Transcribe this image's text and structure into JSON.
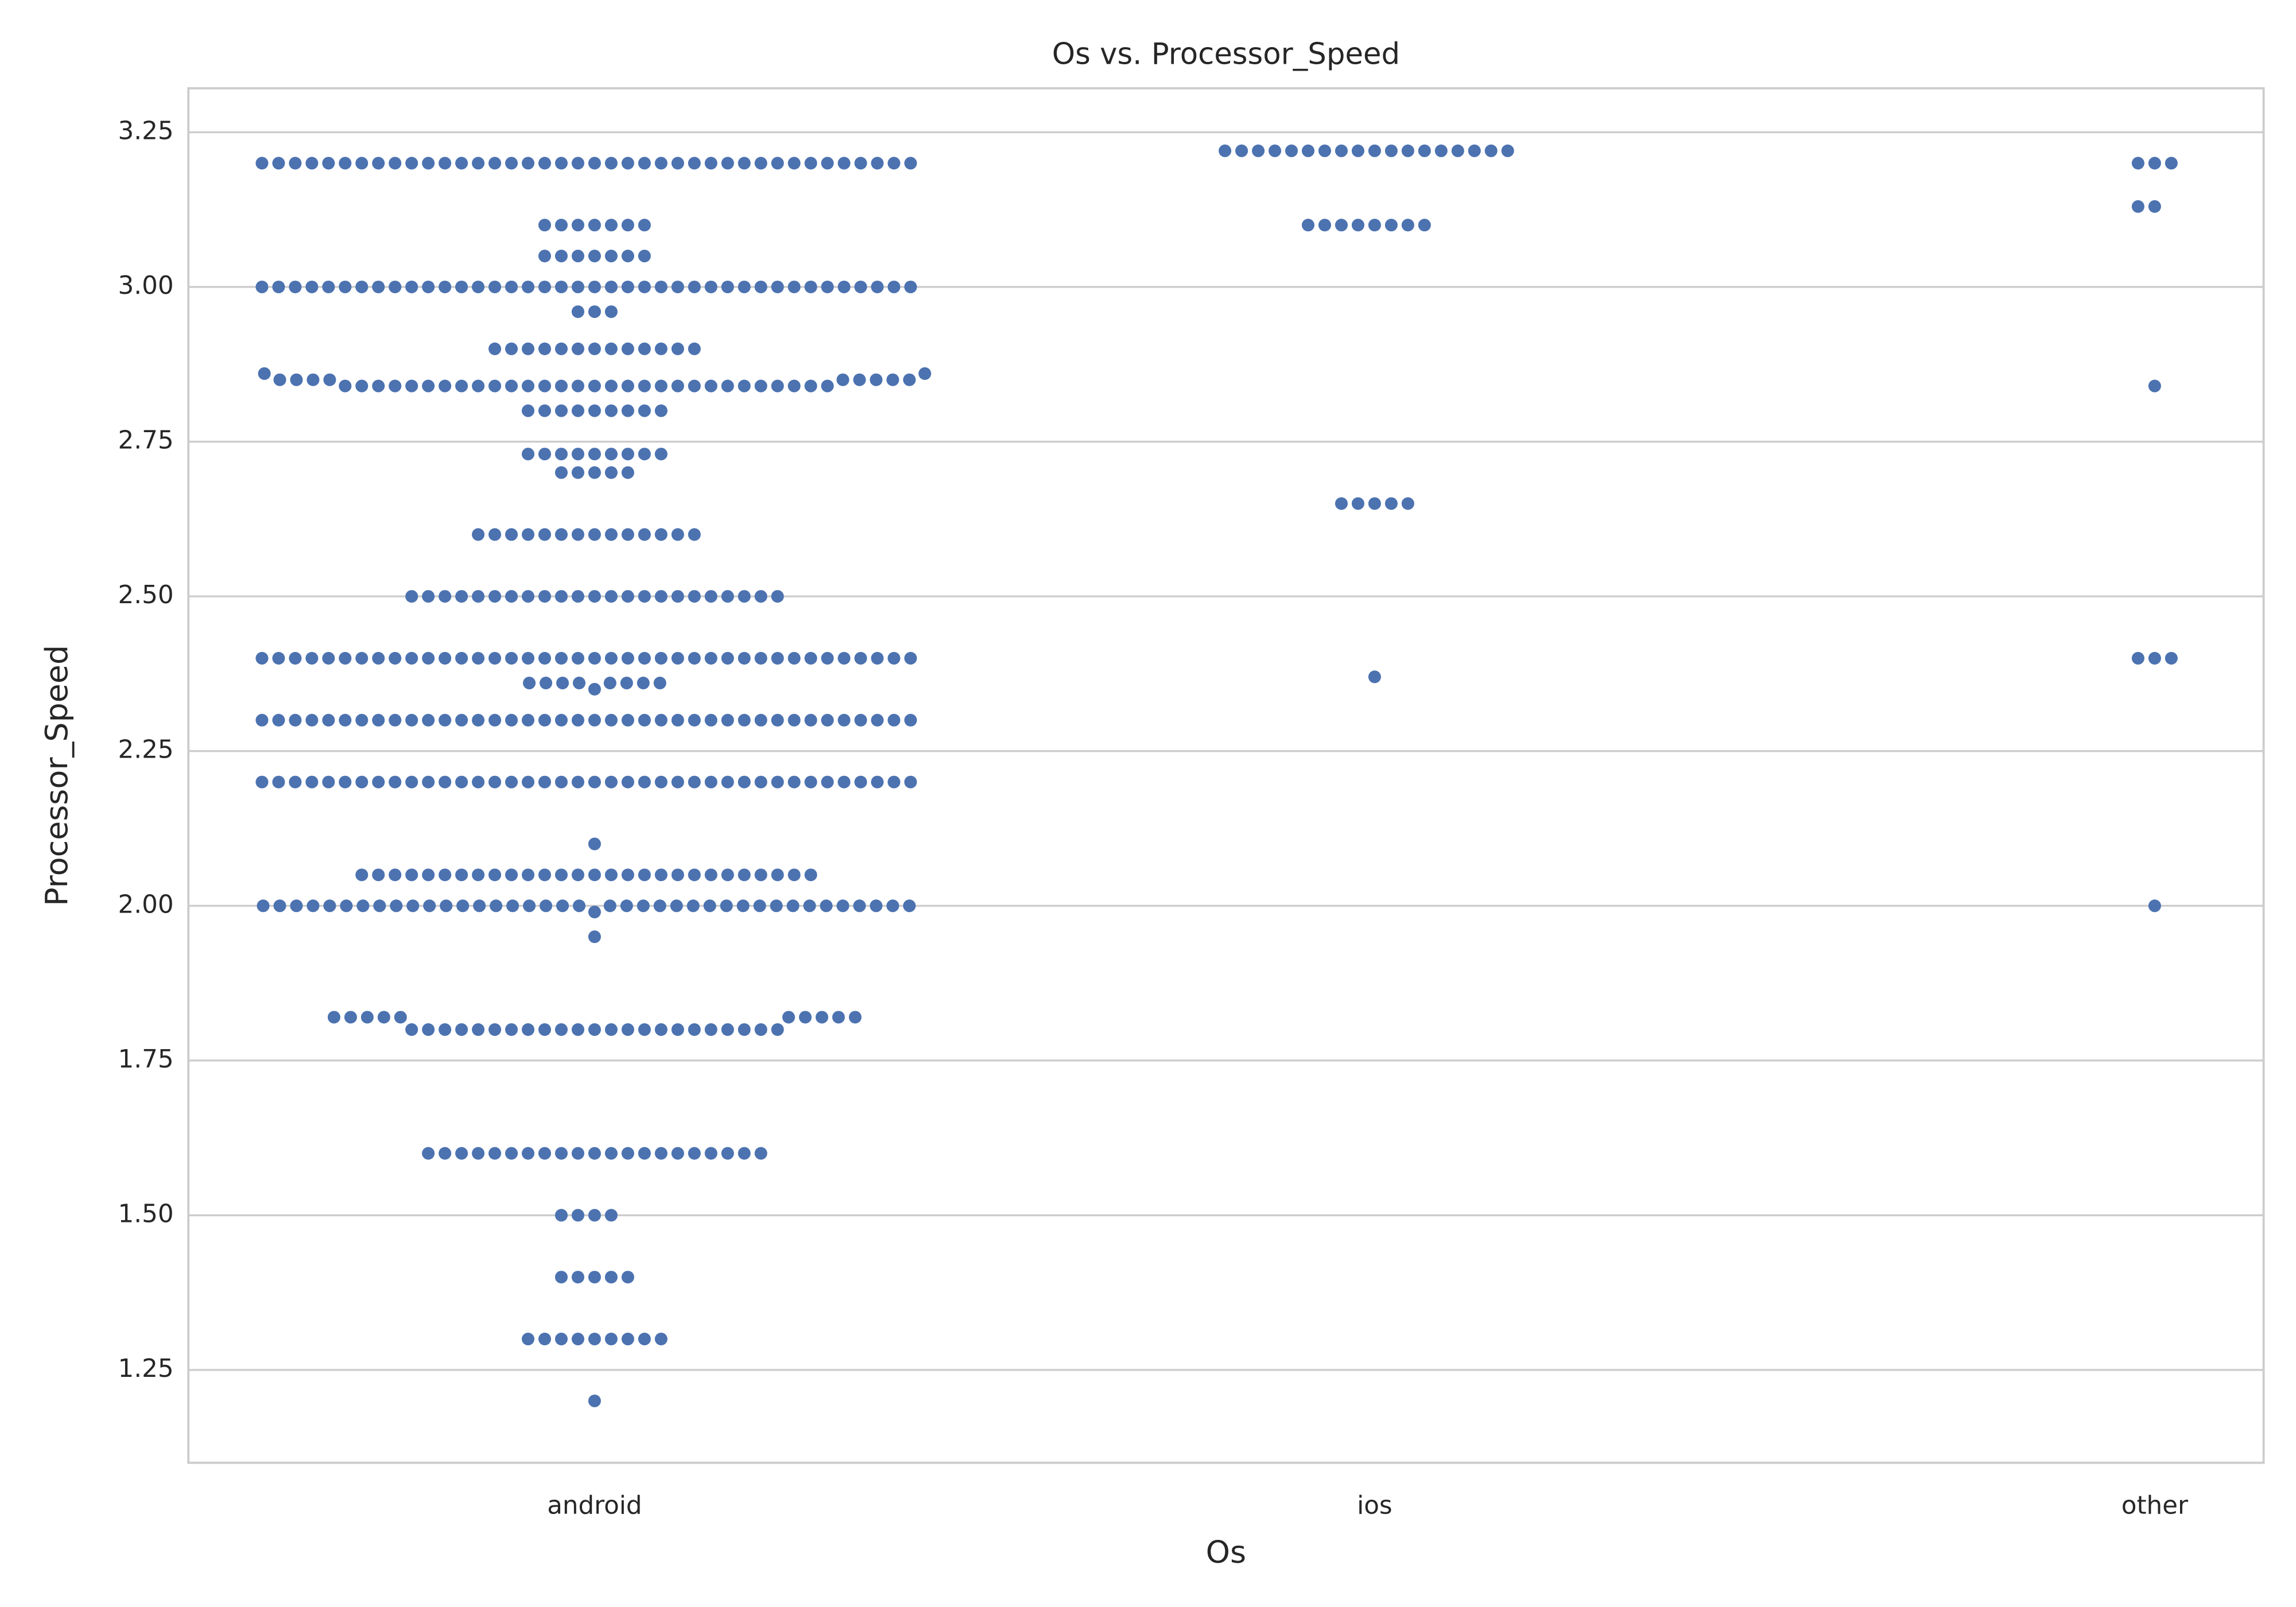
{
  "chart_data": {
    "type": "swarm",
    "title": "Os vs. Processor_Speed",
    "x_label": "Os",
    "y_label": "Processor_Speed",
    "categories": [
      "android",
      "ios",
      "other"
    ],
    "color": "#4c72b0",
    "grid": true,
    "ylim": [
      1.1,
      3.321
    ],
    "yticks": [
      1.25,
      {
        "value": 1.5,
        "label": "1.50"
      },
      1.75,
      {
        "value": 2,
        "label": "2.00"
      },
      2.25,
      {
        "value": 2.5,
        "label": "2.50"
      },
      2.75,
      {
        "value": 3,
        "label": "3.00"
      },
      3.25
    ],
    "values": [
      [
        3.2,
        3.2,
        3.2,
        3.2,
        3.2,
        3.2,
        3.2,
        3.2,
        3.2,
        3.2,
        3.2,
        3.2,
        3.2,
        3.2,
        3.2,
        3.2,
        3.2,
        3.2,
        3.2,
        3.2,
        3.2,
        3.2,
        3.2,
        3.2,
        3.2,
        3.2,
        3.2,
        3.2,
        3.2,
        3.2,
        3.2,
        3.2,
        3.2,
        3.2,
        3.2,
        3.2,
        3.2,
        3.2,
        3.2,
        3.2,
        3.1,
        3.1,
        3.1,
        3.1,
        3.1,
        3.1,
        3.1,
        3.05,
        3.05,
        3.05,
        3.05,
        3.05,
        3.05,
        3.05,
        3,
        3,
        3,
        3,
        3,
        3,
        3,
        3,
        3,
        3,
        3,
        3,
        3,
        3,
        3,
        3,
        3,
        3,
        3,
        3,
        3,
        3,
        3,
        3,
        3,
        3,
        3,
        3,
        3,
        3,
        3,
        3,
        3,
        3,
        3,
        3,
        3,
        3,
        3,
        3,
        2.96,
        2.96,
        2.96,
        2.9,
        2.9,
        2.9,
        2.9,
        2.9,
        2.9,
        2.9,
        2.9,
        2.9,
        2.9,
        2.9,
        2.9,
        2.9,
        2.84,
        2.84,
        2.84,
        2.84,
        2.84,
        2.84,
        2.84,
        2.84,
        2.84,
        2.84,
        2.84,
        2.84,
        2.84,
        2.84,
        2.84,
        2.84,
        2.84,
        2.84,
        2.84,
        2.84,
        2.84,
        2.84,
        2.84,
        2.84,
        2.84,
        2.84,
        2.84,
        2.84,
        2.84,
        2.84,
        2.85,
        2.85,
        2.85,
        2.85,
        2.85,
        2.85,
        2.85,
        2.85,
        2.85,
        2.86,
        2.86,
        2.8,
        2.8,
        2.8,
        2.8,
        2.8,
        2.8,
        2.8,
        2.8,
        2.8,
        2.73,
        2.73,
        2.73,
        2.73,
        2.73,
        2.73,
        2.73,
        2.73,
        2.73,
        2.7,
        2.7,
        2.7,
        2.7,
        2.7,
        2.6,
        2.6,
        2.6,
        2.6,
        2.6,
        2.6,
        2.6,
        2.6,
        2.6,
        2.6,
        2.6,
        2.6,
        2.6,
        2.6,
        2.5,
        2.5,
        2.5,
        2.5,
        2.5,
        2.5,
        2.5,
        2.5,
        2.5,
        2.5,
        2.5,
        2.5,
        2.5,
        2.5,
        2.5,
        2.5,
        2.5,
        2.5,
        2.5,
        2.5,
        2.5,
        2.5,
        2.5,
        2.4,
        2.4,
        2.4,
        2.4,
        2.4,
        2.4,
        2.4,
        2.4,
        2.4,
        2.4,
        2.4,
        2.4,
        2.4,
        2.4,
        2.4,
        2.4,
        2.4,
        2.4,
        2.4,
        2.4,
        2.4,
        2.4,
        2.4,
        2.4,
        2.4,
        2.4,
        2.4,
        2.4,
        2.4,
        2.4,
        2.4,
        2.4,
        2.4,
        2.4,
        2.4,
        2.4,
        2.4,
        2.4,
        2.4,
        2.4,
        2.35,
        2.36,
        2.36,
        2.36,
        2.36,
        2.36,
        2.36,
        2.36,
        2.36,
        2.3,
        2.3,
        2.3,
        2.3,
        2.3,
        2.3,
        2.3,
        2.3,
        2.3,
        2.3,
        2.3,
        2.3,
        2.3,
        2.3,
        2.3,
        2.3,
        2.3,
        2.3,
        2.3,
        2.3,
        2.3,
        2.3,
        2.3,
        2.3,
        2.3,
        2.3,
        2.3,
        2.3,
        2.3,
        2.3,
        2.3,
        2.3,
        2.3,
        2.3,
        2.3,
        2.3,
        2.3,
        2.3,
        2.3,
        2.3,
        2.2,
        2.2,
        2.2,
        2.2,
        2.2,
        2.2,
        2.2,
        2.2,
        2.2,
        2.2,
        2.2,
        2.2,
        2.2,
        2.2,
        2.2,
        2.2,
        2.2,
        2.2,
        2.2,
        2.2,
        2.2,
        2.2,
        2.2,
        2.2,
        2.2,
        2.2,
        2.2,
        2.2,
        2.2,
        2.2,
        2.2,
        2.2,
        2.2,
        2.2,
        2.2,
        2.2,
        2.2,
        2.2,
        2.2,
        2.2,
        2.1,
        2.05,
        2.05,
        2.05,
        2.05,
        2.05,
        2.05,
        2.05,
        2.05,
        2.05,
        2.05,
        2.05,
        2.05,
        2.05,
        2.05,
        2.05,
        2.05,
        2.05,
        2.05,
        2.05,
        2.05,
        2.05,
        2.05,
        2.05,
        2.05,
        2.05,
        2.05,
        2.05,
        2.05,
        1.99,
        2,
        2,
        2,
        2,
        2,
        2,
        2,
        2,
        2,
        2,
        2,
        2,
        2,
        2,
        2,
        2,
        2,
        2,
        2,
        2,
        2,
        2,
        2,
        2,
        2,
        2,
        2,
        2,
        2,
        2,
        2,
        2,
        2,
        2,
        2,
        2,
        2,
        2,
        2,
        1.95,
        1.8,
        1.8,
        1.8,
        1.8,
        1.8,
        1.8,
        1.8,
        1.8,
        1.8,
        1.8,
        1.8,
        1.8,
        1.8,
        1.8,
        1.8,
        1.8,
        1.8,
        1.8,
        1.8,
        1.8,
        1.8,
        1.8,
        1.8,
        1.82,
        1.82,
        1.82,
        1.82,
        1.82,
        1.82,
        1.82,
        1.82,
        1.82,
        1.82,
        1.6,
        1.6,
        1.6,
        1.6,
        1.6,
        1.6,
        1.6,
        1.6,
        1.6,
        1.6,
        1.6,
        1.6,
        1.6,
        1.6,
        1.6,
        1.6,
        1.6,
        1.6,
        1.6,
        1.6,
        1.6,
        1.5,
        1.5,
        1.5,
        1.5,
        1.4,
        1.4,
        1.4,
        1.4,
        1.4,
        1.3,
        1.3,
        1.3,
        1.3,
        1.3,
        1.3,
        1.3,
        1.3,
        1.3,
        1.2
      ],
      [
        3.22,
        3.22,
        3.22,
        3.22,
        3.22,
        3.22,
        3.22,
        3.22,
        3.22,
        3.22,
        3.22,
        3.22,
        3.22,
        3.22,
        3.22,
        3.22,
        3.22,
        3.22,
        3.1,
        3.1,
        3.1,
        3.1,
        3.1,
        3.1,
        3.1,
        3.1,
        2.65,
        2.65,
        2.65,
        2.65,
        2.65,
        2.37
      ],
      [
        3.2,
        3.2,
        3.2,
        3.13,
        3.13,
        2.84,
        2.4,
        2.4,
        2.4,
        2
      ]
    ]
  }
}
